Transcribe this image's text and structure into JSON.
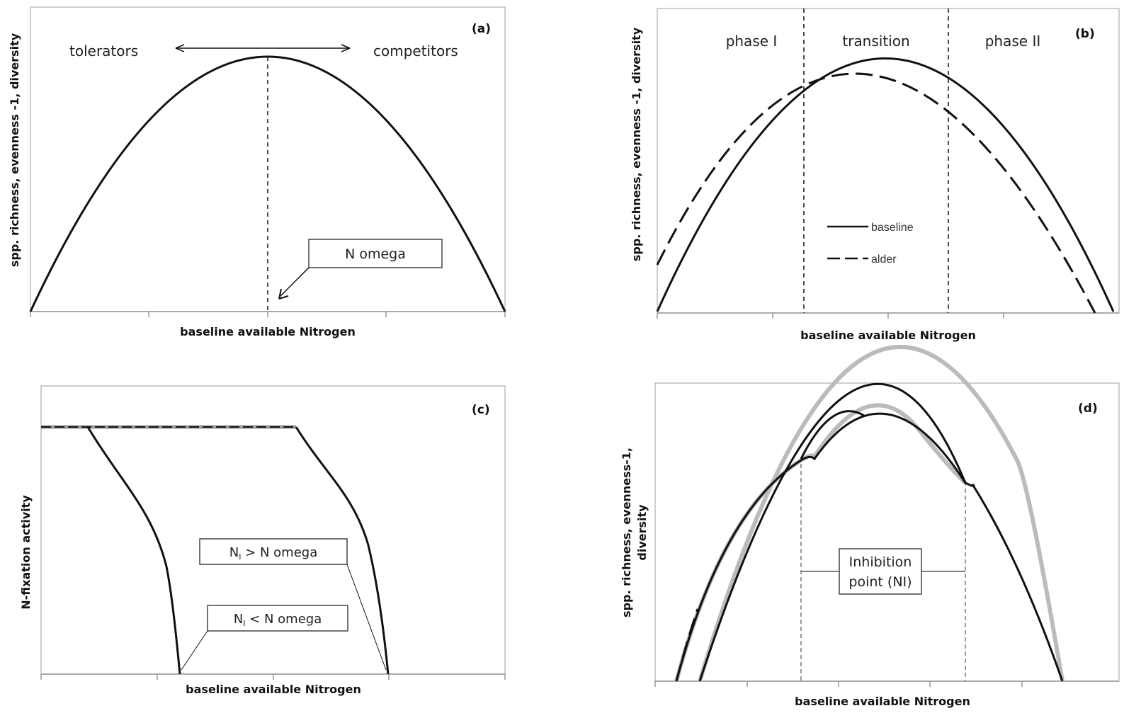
{
  "panel_a": {
    "panel_label": "(a)",
    "ylabel": "spp. richness, evenness -1, diversity",
    "xlabel": "baseline available Nitrogen",
    "left_annotation": "tolerators",
    "right_annotation": "competitors",
    "callout": "N omega"
  },
  "panel_b": {
    "panel_label": "(b)",
    "ylabel": "spp. richness, evenness -1, diversity",
    "xlabel": "baseline available Nitrogen",
    "phase_1": "phase I",
    "transition": "transition",
    "phase_2": "phase II",
    "legend": [
      {
        "name": "baseline",
        "style": "solid"
      },
      {
        "name": "alder",
        "style": "dashed"
      }
    ]
  },
  "panel_c": {
    "panel_label": "(c)",
    "ylabel": "N-fixation activity",
    "xlabel": "baseline available Nitrogen",
    "box_upper": {
      "main": "N",
      "sub": "I",
      "rest": " > N omega"
    },
    "box_lower": {
      "main": "N",
      "sub": "I",
      "rest": " < N omega"
    }
  },
  "panel_d": {
    "panel_label": "(d)",
    "ylabel_line1": "spp. richness, evenness-1,",
    "ylabel_line2": "diversity",
    "xlabel": "baseline available Nitrogen",
    "callout_line1": "Inhibition",
    "callout_line2": "point (NI)"
  },
  "colors": {
    "curve": "#111111",
    "frame": "#bdbdbd",
    "inhibition_line": "#999999"
  }
}
